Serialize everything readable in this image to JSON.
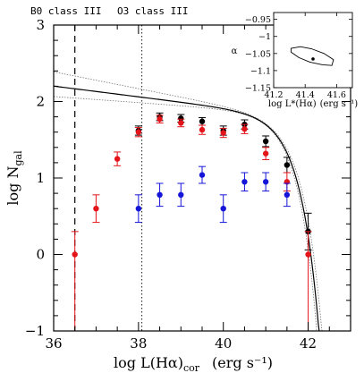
{
  "chart_data": {
    "type": "scatter",
    "title": "",
    "xlabel": "log L(Hα)",
    "xlabel_sub": "cor",
    "xlabel_units": "(erg s⁻¹)",
    "ylabel": "log N",
    "ylabel_sub": "gal",
    "xlim": [
      36,
      43
    ],
    "ylim": [
      -1,
      3
    ],
    "x_ticks": [
      36,
      38,
      40,
      42
    ],
    "y_ticks": [
      -1,
      0,
      1,
      2,
      3
    ],
    "vertical_lines": [
      {
        "x": 36.5,
        "label": "B0 class III",
        "style": "dashed"
      },
      {
        "x": 38.08,
        "label": "O3 class III",
        "style": "dotted"
      }
    ],
    "series": [
      {
        "color": "#000000",
        "points": [
          {
            "x": 38.0,
            "y": 1.62,
            "err": 0.06
          },
          {
            "x": 38.5,
            "y": 1.8,
            "err": 0.05
          },
          {
            "x": 39.0,
            "y": 1.78,
            "err": 0.05
          },
          {
            "x": 39.5,
            "y": 1.74,
            "err": 0.05
          },
          {
            "x": 40.0,
            "y": 1.62,
            "err": 0.06
          },
          {
            "x": 40.5,
            "y": 1.7,
            "err": 0.06
          },
          {
            "x": 41.0,
            "y": 1.48,
            "err": 0.07
          },
          {
            "x": 41.5,
            "y": 1.17,
            "err": 0.1
          },
          {
            "x": 42.0,
            "y": 0.3,
            "err": 0.24
          }
        ]
      },
      {
        "color": "#e4141b",
        "points": [
          {
            "x": 36.5,
            "y": 0.0,
            "err_up": 0.3,
            "err_down": 1.0
          },
          {
            "x": 37.0,
            "y": 0.6,
            "err": 0.18
          },
          {
            "x": 37.5,
            "y": 1.25,
            "err": 0.09
          },
          {
            "x": 38.0,
            "y": 1.6,
            "err": 0.06
          },
          {
            "x": 38.5,
            "y": 1.77,
            "err": 0.05
          },
          {
            "x": 39.0,
            "y": 1.72,
            "err": 0.05
          },
          {
            "x": 39.5,
            "y": 1.63,
            "err": 0.06
          },
          {
            "x": 40.0,
            "y": 1.59,
            "err": 0.06
          },
          {
            "x": 40.5,
            "y": 1.64,
            "err": 0.06
          },
          {
            "x": 41.0,
            "y": 1.32,
            "err": 0.08
          },
          {
            "x": 41.5,
            "y": 0.95,
            "err": 0.12
          },
          {
            "x": 42.0,
            "y": 0.0,
            "err_up": 0.3,
            "err_down": 1.0
          }
        ]
      },
      {
        "color": "#1515d9",
        "points": [
          {
            "x": 38.0,
            "y": 0.6,
            "err": 0.18
          },
          {
            "x": 38.5,
            "y": 0.78,
            "err": 0.15
          },
          {
            "x": 39.0,
            "y": 0.78,
            "err": 0.15
          },
          {
            "x": 39.5,
            "y": 1.04,
            "err": 0.11
          },
          {
            "x": 40.0,
            "y": 0.6,
            "err": 0.18
          },
          {
            "x": 40.5,
            "y": 0.95,
            "err": 0.12
          },
          {
            "x": 41.0,
            "y": 0.95,
            "err": 0.12
          },
          {
            "x": 41.5,
            "y": 0.78,
            "err": 0.15
          }
        ]
      }
    ],
    "fit": {
      "type": "schechter",
      "log_phi_star": 1.82,
      "log_L_star": 41.45,
      "alpha": -1.07,
      "confidence_band": true
    },
    "inset": {
      "xlabel": "log L*(Hα)",
      "xlabel_units": "(erg s⁻¹)",
      "ylabel": "α",
      "xlim": [
        41.2,
        41.7
      ],
      "ylim": [
        -1.15,
        -0.93
      ],
      "x_ticks": [
        "41.2",
        "41.4",
        "41.6"
      ],
      "x_tick_values": [
        41.2,
        41.4,
        41.6
      ],
      "y_ticks": [
        "−0.95",
        "−1",
        "−1.05",
        "−1.1",
        "−1.15"
      ],
      "y_tick_values": [
        -0.95,
        -1.0,
        -1.05,
        -1.1,
        -1.15
      ],
      "best_fit": {
        "x": 41.45,
        "y": -1.066
      },
      "contour": [
        [
          41.31,
          -1.035
        ],
        [
          41.37,
          -1.03
        ],
        [
          41.44,
          -1.036
        ],
        [
          41.52,
          -1.05
        ],
        [
          41.58,
          -1.068
        ],
        [
          41.57,
          -1.085
        ],
        [
          41.51,
          -1.083
        ],
        [
          41.43,
          -1.075
        ],
        [
          41.36,
          -1.062
        ],
        [
          41.31,
          -1.046
        ]
      ]
    }
  }
}
